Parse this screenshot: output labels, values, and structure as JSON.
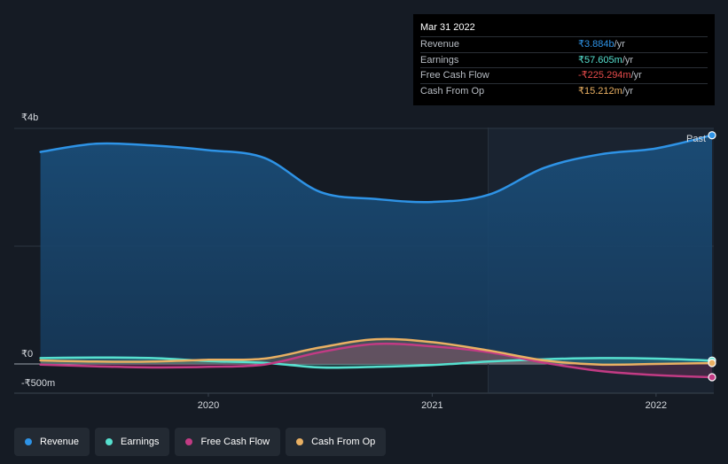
{
  "chart_data": {
    "type": "area",
    "x_ticks": [
      "2020",
      "2021",
      "2022"
    ],
    "x_range": [
      2019.2,
      2022.25
    ],
    "y_range": [
      -500,
      4000
    ],
    "y_ticks": [
      {
        "value": 4000,
        "label": "₹4b"
      },
      {
        "value": 0,
        "label": "₹0"
      },
      {
        "value": -500,
        "label": "-₹500m"
      }
    ],
    "past_start": 2021.25,
    "past_label": "Past",
    "series": [
      {
        "name": "Revenue",
        "color": "#2e93e6",
        "points": [
          [
            2019.25,
            3600
          ],
          [
            2019.5,
            3740
          ],
          [
            2019.75,
            3710
          ],
          [
            2020.0,
            3630
          ],
          [
            2020.25,
            3500
          ],
          [
            2020.5,
            2920
          ],
          [
            2020.75,
            2800
          ],
          [
            2021.0,
            2750
          ],
          [
            2021.25,
            2870
          ],
          [
            2021.5,
            3330
          ],
          [
            2021.75,
            3560
          ],
          [
            2022.0,
            3660
          ],
          [
            2022.25,
            3884
          ]
        ]
      },
      {
        "name": "Earnings",
        "color": "#56e0cf",
        "points": [
          [
            2019.25,
            100
          ],
          [
            2019.5,
            110
          ],
          [
            2019.75,
            100
          ],
          [
            2020.0,
            50
          ],
          [
            2020.25,
            20
          ],
          [
            2020.5,
            -60
          ],
          [
            2020.75,
            -50
          ],
          [
            2021.0,
            -20
          ],
          [
            2021.25,
            40
          ],
          [
            2021.5,
            80
          ],
          [
            2021.75,
            100
          ],
          [
            2022.0,
            90
          ],
          [
            2022.25,
            57.6
          ]
        ]
      },
      {
        "name": "Free Cash Flow",
        "color": "#c23b84",
        "points": [
          [
            2019.25,
            -10
          ],
          [
            2019.5,
            -40
          ],
          [
            2019.75,
            -60
          ],
          [
            2020.0,
            -50
          ],
          [
            2020.25,
            -10
          ],
          [
            2020.5,
            200
          ],
          [
            2020.75,
            340
          ],
          [
            2021.0,
            300
          ],
          [
            2021.25,
            200
          ],
          [
            2021.5,
            20
          ],
          [
            2021.75,
            -120
          ],
          [
            2022.0,
            -190
          ],
          [
            2022.25,
            -225.3
          ]
        ]
      },
      {
        "name": "Cash From Op",
        "color": "#e9b063",
        "points": [
          [
            2019.25,
            60
          ],
          [
            2019.5,
            40
          ],
          [
            2019.75,
            40
          ],
          [
            2020.0,
            70
          ],
          [
            2020.25,
            90
          ],
          [
            2020.5,
            280
          ],
          [
            2020.75,
            420
          ],
          [
            2021.0,
            370
          ],
          [
            2021.25,
            230
          ],
          [
            2021.5,
            60
          ],
          [
            2021.75,
            -10
          ],
          [
            2022.0,
            0
          ],
          [
            2022.25,
            15.2
          ]
        ]
      }
    ]
  },
  "tooltip": {
    "date": "Mar 31 2022",
    "rows": [
      {
        "label": "Revenue",
        "value": "₹3.884b",
        "unit": " /yr",
        "color": "#2e93e6"
      },
      {
        "label": "Earnings",
        "value": "₹57.605m",
        "unit": " /yr",
        "color": "#56e0cf"
      },
      {
        "label": "Free Cash Flow",
        "value": "-₹225.294m",
        "unit": " /yr",
        "color": "#e64b4b"
      },
      {
        "label": "Cash From Op",
        "value": "₹15.212m",
        "unit": " /yr",
        "color": "#e9b063"
      }
    ]
  },
  "legend": [
    {
      "label": "Revenue",
      "color": "#2e93e6"
    },
    {
      "label": "Earnings",
      "color": "#56e0cf"
    },
    {
      "label": "Free Cash Flow",
      "color": "#c23b84"
    },
    {
      "label": "Cash From Op",
      "color": "#e9b063"
    }
  ]
}
